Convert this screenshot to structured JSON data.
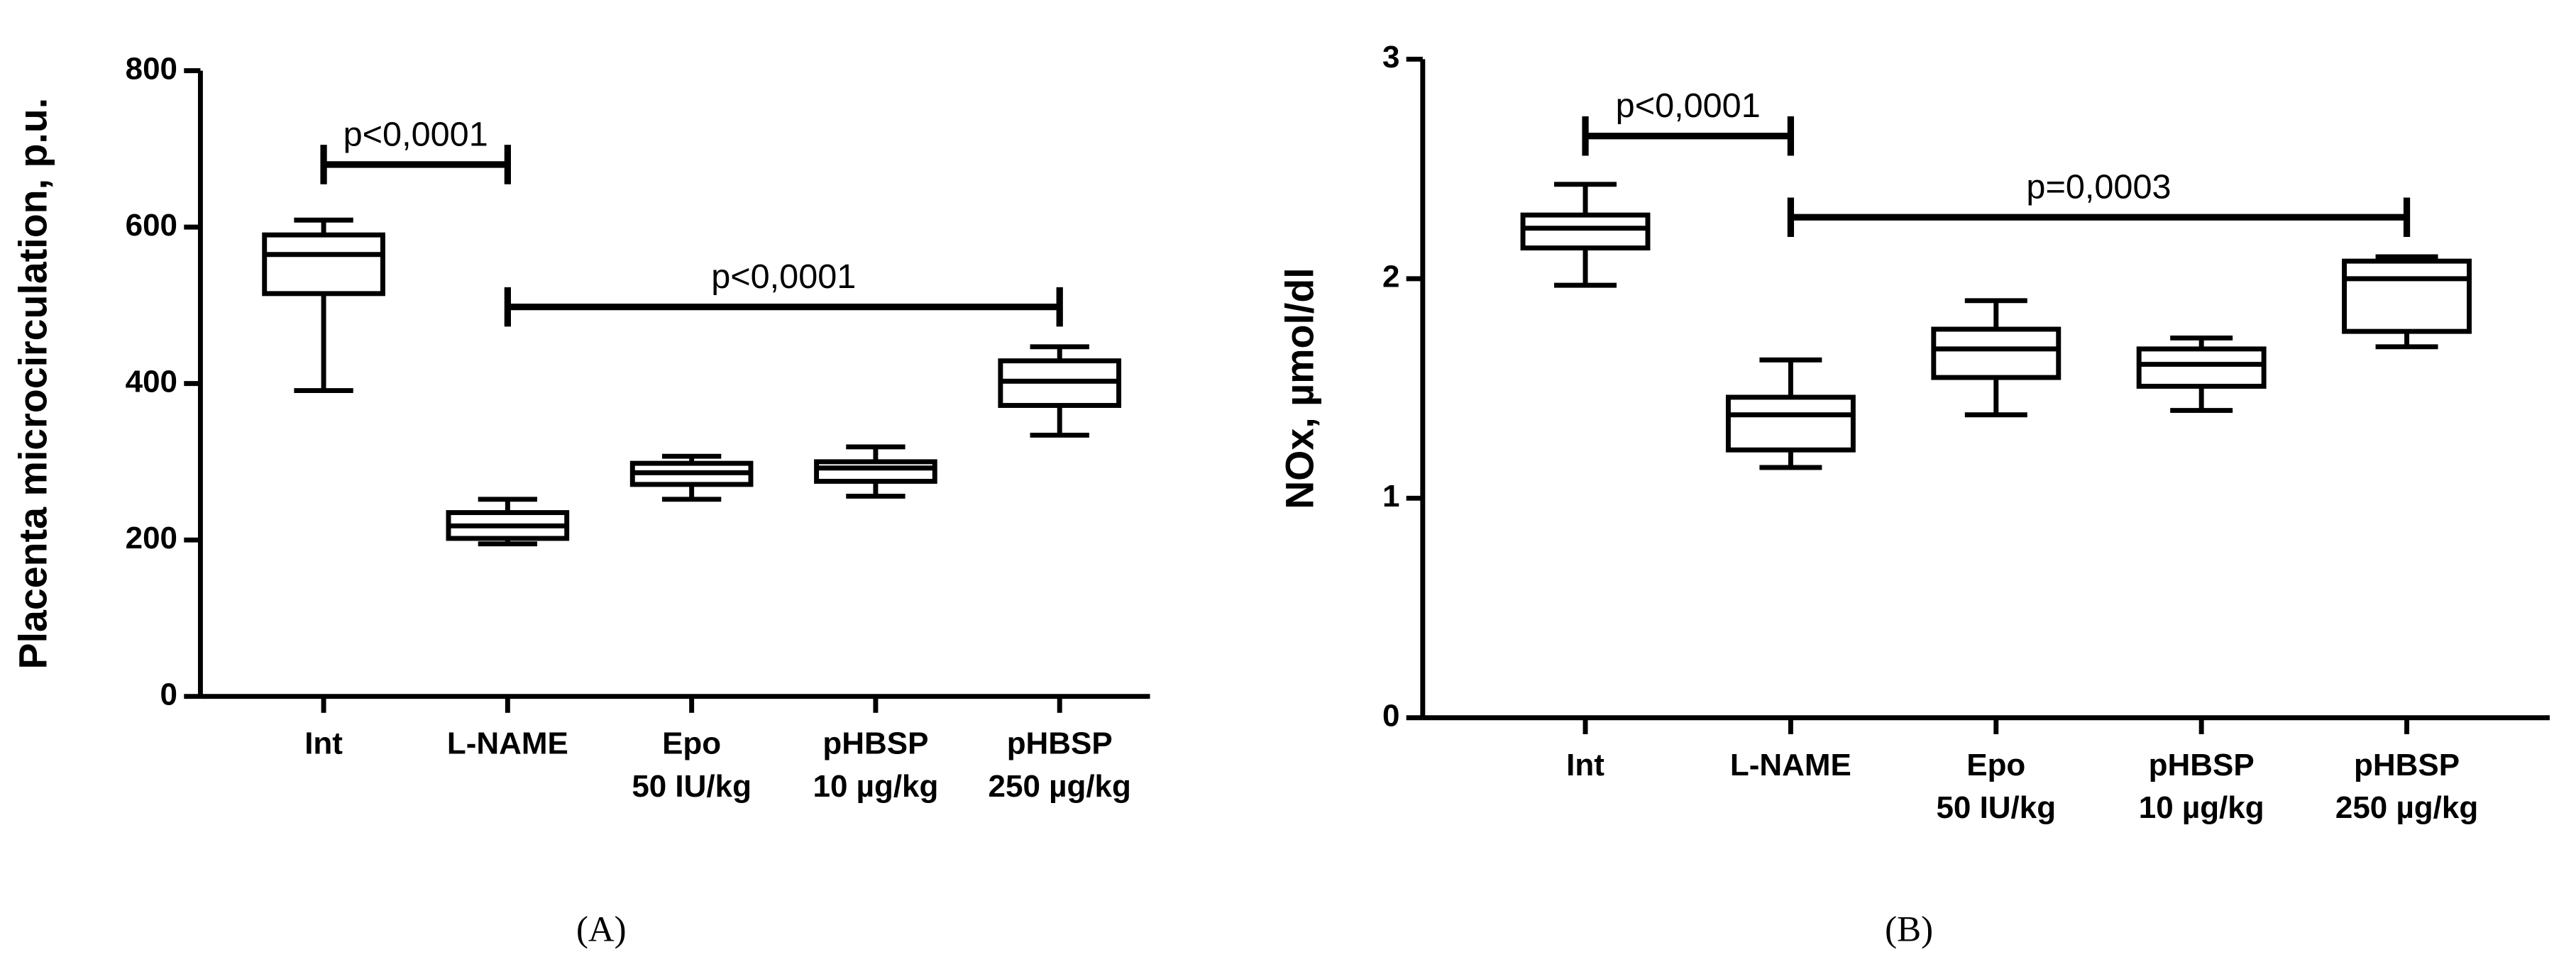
{
  "chart_data": [
    {
      "type": "box",
      "panel": "(A)",
      "y_label": "Placenta microcirculation, p.u.",
      "categories": [
        [
          "Int"
        ],
        [
          "L-NAME"
        ],
        [
          "Epo",
          "50 IU/kg"
        ],
        [
          "pHBSP",
          "10 µg/kg"
        ],
        [
          "pHBSP",
          "250 µg/kg"
        ]
      ],
      "boxes": [
        {
          "low": 391,
          "q1": 515,
          "median": 565,
          "q3": 590,
          "high": 609
        },
        {
          "low": 195,
          "q1": 202,
          "median": 218,
          "q3": 235,
          "high": 252
        },
        {
          "low": 252,
          "q1": 271,
          "median": 286,
          "q3": 298,
          "high": 307
        },
        {
          "low": 256,
          "q1": 275,
          "median": 292,
          "q3": 300,
          "high": 319
        },
        {
          "low": 334,
          "q1": 372,
          "median": 403,
          "q3": 429,
          "high": 447
        }
      ],
      "color": "#000000",
      "ylim": [
        0,
        800
      ],
      "yticks": [
        0,
        200,
        400,
        600,
        800
      ],
      "annotations": [
        {
          "text": "p<0,0001",
          "from": 0,
          "to": 1,
          "y": 680
        },
        {
          "text": "p<0,0001",
          "from": 1,
          "to": 4,
          "y": 498
        }
      ]
    },
    {
      "type": "box",
      "panel": "(B)",
      "y_label": "NOx, µmol/dl",
      "categories": [
        [
          "Int"
        ],
        [
          "L-NAME"
        ],
        [
          "Epo",
          "50 IU/kg"
        ],
        [
          "pHBSP",
          "10 µg/kg"
        ],
        [
          "pHBSP",
          "250 µg/kg"
        ]
      ],
      "boxes": [
        {
          "low": 1.97,
          "q1": 2.14,
          "median": 2.23,
          "q3": 2.29,
          "high": 2.43
        },
        {
          "low": 1.14,
          "q1": 1.22,
          "median": 1.38,
          "q3": 1.46,
          "high": 1.63
        },
        {
          "low": 1.38,
          "q1": 1.55,
          "median": 1.68,
          "q3": 1.77,
          "high": 1.9
        },
        {
          "low": 1.4,
          "q1": 1.51,
          "median": 1.61,
          "q3": 1.68,
          "high": 1.73
        },
        {
          "low": 1.69,
          "q1": 1.76,
          "median": 2.0,
          "q3": 2.08,
          "high": 2.1
        }
      ],
      "color": "#000000",
      "ylim": [
        0,
        3
      ],
      "yticks": [
        0,
        1,
        2,
        3
      ],
      "annotations": [
        {
          "text": "p<0,0001",
          "from": 0,
          "to": 1,
          "y": 2.65
        },
        {
          "text": "p=0,0003",
          "from": 1,
          "to": 4,
          "y": 2.28
        }
      ]
    }
  ]
}
